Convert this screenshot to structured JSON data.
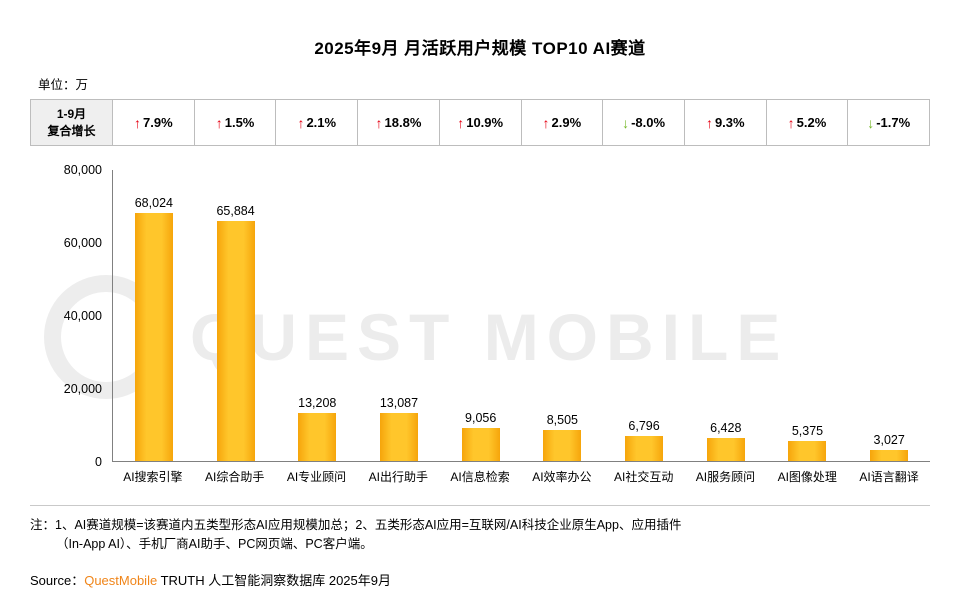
{
  "title": "2025年9月 月活跃用户规模 TOP10 AI赛道",
  "unit_label": "单位：万",
  "growth_header": {
    "line1": "1-9月",
    "line2": "复合增长"
  },
  "growth_items": [
    {
      "value": "7.9%",
      "direction": "up"
    },
    {
      "value": "1.5%",
      "direction": "up"
    },
    {
      "value": "2.1%",
      "direction": "up"
    },
    {
      "value": "18.8%",
      "direction": "up"
    },
    {
      "value": "10.9%",
      "direction": "up"
    },
    {
      "value": "2.9%",
      "direction": "up"
    },
    {
      "value": "-8.0%",
      "direction": "down"
    },
    {
      "value": "9.3%",
      "direction": "up"
    },
    {
      "value": "5.2%",
      "direction": "up"
    },
    {
      "value": "-1.7%",
      "direction": "down"
    }
  ],
  "chart_data": {
    "type": "bar",
    "title": "2025年9月 月活跃用户规模 TOP10 AI赛道",
    "unit": "万",
    "categories": [
      "AI搜索引擎",
      "AI综合助手",
      "AI专业顾问",
      "AI出行助手",
      "AI信息检索",
      "AI效率办公",
      "AI社交互动",
      "AI服务顾问",
      "AI图像处理",
      "AI语言翻译"
    ],
    "values": [
      68024,
      65884,
      13208,
      13087,
      9056,
      8505,
      6796,
      6428,
      5375,
      3027
    ],
    "value_labels": [
      "68,024",
      "65,884",
      "13,208",
      "13,087",
      "9,056",
      "8,505",
      "6,796",
      "6,428",
      "5,375",
      "3,027"
    ],
    "growth_series": {
      "name": "1-9月复合增长",
      "values": [
        "7.9%",
        "1.5%",
        "2.1%",
        "18.8%",
        "10.9%",
        "2.9%",
        "-8.0%",
        "9.3%",
        "5.2%",
        "-1.7%"
      ]
    },
    "ylim": [
      0,
      80000
    ],
    "yticks": [
      "80,000",
      "60,000",
      "40,000",
      "20,000",
      "0"
    ],
    "grid": false,
    "legend": false
  },
  "watermark_text": "QUEST MOBILE",
  "notes": {
    "line1": "注：1、AI赛道规模=该赛道内五类型形态AI应用规模加总；2、五类形态AI应用=互联网/AI科技企业原生App、应用插件",
    "line2": "（In-App AI）、手机厂商AI助手、PC网页端、PC客户端。"
  },
  "source": {
    "label": "Source：",
    "brand": "QuestMobile",
    "text": " TRUTH 人工智能洞察数据库 2025年9月"
  },
  "colors": {
    "up_arrow": "#e60012",
    "down_arrow": "#76b82a",
    "bar_edge": "#f6a50b",
    "bar_center": "#ffc62b",
    "brand_orange": "#f08519",
    "watermark": "#ececec"
  }
}
